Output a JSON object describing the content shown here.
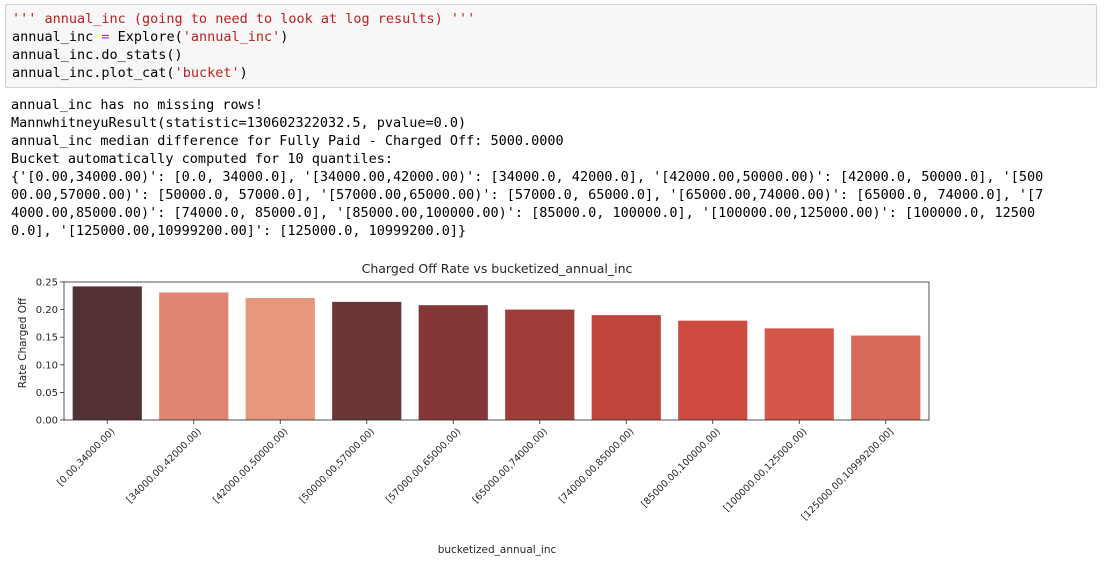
{
  "code_cell": {
    "lines": [
      {
        "segments": [
          {
            "text": "''' annual_inc (going to need to look at log results) '''",
            "style": "str"
          }
        ]
      },
      {
        "segments": [
          {
            "text": "annual_inc ",
            "style": ""
          },
          {
            "text": "=",
            "style": "op"
          },
          {
            "text": " Explore(",
            "style": ""
          },
          {
            "text": "'annual_inc'",
            "style": "str"
          },
          {
            "text": ")",
            "style": ""
          }
        ]
      },
      {
        "segments": [
          {
            "text": "annual_inc.do_stats()",
            "style": ""
          }
        ]
      },
      {
        "segments": [
          {
            "text": "annual_inc.plot_cat(",
            "style": ""
          },
          {
            "text": "'bucket'",
            "style": "str"
          },
          {
            "text": ")",
            "style": ""
          }
        ]
      }
    ]
  },
  "output": {
    "lines": [
      "annual_inc has no missing rows!",
      "MannwhitneyuResult(statistic=130602322032.5, pvalue=0.0)",
      "annual_inc median difference for Fully Paid - Charged Off: 5000.0000",
      "Bucket automatically computed for 10 quantiles:",
      "{'[0.00,34000.00)': [0.0, 34000.0], '[34000.00,42000.00)': [34000.0, 42000.0], '[42000.00,50000.00)': [42000.0, 50000.0], '[500",
      "00.00,57000.00)': [50000.0, 57000.0], '[57000.00,65000.00)': [57000.0, 65000.0], '[65000.00,74000.00)': [65000.0, 74000.0], '[7",
      "4000.00,85000.00)': [74000.0, 85000.0], '[85000.00,100000.00)': [85000.0, 100000.0], '[100000.00,125000.00)': [100000.0, 12500",
      "0.0], '[125000.00,10999200.00]': [125000.0, 10999200.0]}"
    ]
  },
  "chart_data": {
    "type": "bar",
    "title": "Charged Off Rate vs bucketized_annual_inc",
    "xlabel": "bucketized_annual_inc",
    "ylabel": "Rate Charged Off",
    "ylim": [
      0,
      0.25
    ],
    "yticks": [
      "0.00",
      "0.05",
      "0.10",
      "0.15",
      "0.20",
      "0.25"
    ],
    "grid": false,
    "categories": [
      "[0.00,34000.00)",
      "[34000.00,42000.00)",
      "[42000.00,50000.00)",
      "[50000.00,57000.00)",
      "[57000.00,65000.00)",
      "[65000.00,74000.00)",
      "[74000.00,85000.00)",
      "[85000.00,100000.00)",
      "[100000.00,125000.00)",
      "[125000.00,10999200.00]"
    ],
    "values": [
      0.242,
      0.231,
      0.221,
      0.214,
      0.208,
      0.2,
      0.19,
      0.18,
      0.166,
      0.153
    ],
    "colors": [
      "#533134",
      "#e08473",
      "#e6977e",
      "#6b3536",
      "#853636",
      "#a03d39",
      "#bf443d",
      "#cf4b41",
      "#d45648",
      "#d8695a"
    ]
  }
}
